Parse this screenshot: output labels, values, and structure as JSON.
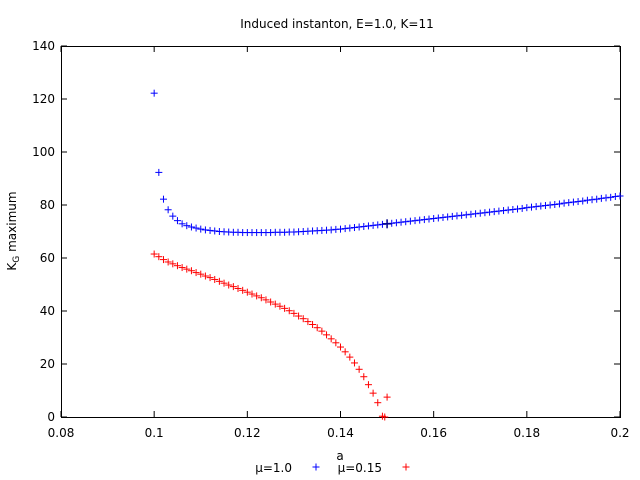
{
  "chart_data": {
    "type": "scatter",
    "title": "Induced instanton, E=1.0, K=11",
    "xlabel": "a",
    "ylabel_main": "K",
    "ylabel_sub": "G",
    "ylabel_rest": " maximum",
    "xlim": [
      0.08,
      0.2
    ],
    "ylim": [
      0,
      140
    ],
    "x_ticks": [
      "0.08",
      "0.1",
      "0.12",
      "0.14",
      "0.16",
      "0.18",
      "0.2"
    ],
    "y_ticks": [
      "0",
      "20",
      "40",
      "60",
      "80",
      "100",
      "120",
      "140"
    ],
    "grid": false,
    "legend_position": "bottom-center",
    "series": [
      {
        "name": "μ=1.0",
        "color": "#0000ff",
        "marker": "plus",
        "points": [
          [
            0.1,
            122.2
          ],
          [
            0.101,
            92.3
          ],
          [
            0.102,
            82.2
          ],
          [
            0.103,
            78.2
          ],
          [
            0.104,
            75.8
          ],
          [
            0.105,
            74.1
          ],
          [
            0.106,
            72.9
          ],
          [
            0.107,
            72.2
          ],
          [
            0.108,
            71.7
          ],
          [
            0.109,
            71.3
          ],
          [
            0.11,
            70.9
          ],
          [
            0.111,
            70.6
          ],
          [
            0.112,
            70.4
          ],
          [
            0.113,
            70.2
          ],
          [
            0.114,
            70.0
          ],
          [
            0.115,
            69.9
          ],
          [
            0.116,
            69.8
          ],
          [
            0.117,
            69.7
          ],
          [
            0.118,
            69.7
          ],
          [
            0.119,
            69.6
          ],
          [
            0.12,
            69.6
          ],
          [
            0.121,
            69.6
          ],
          [
            0.122,
            69.6
          ],
          [
            0.123,
            69.6
          ],
          [
            0.124,
            69.6
          ],
          [
            0.125,
            69.6
          ],
          [
            0.126,
            69.7
          ],
          [
            0.127,
            69.7
          ],
          [
            0.128,
            69.7
          ],
          [
            0.129,
            69.8
          ],
          [
            0.13,
            69.8
          ],
          [
            0.131,
            69.9
          ],
          [
            0.132,
            70.0
          ],
          [
            0.133,
            70.1
          ],
          [
            0.134,
            70.2
          ],
          [
            0.135,
            70.3
          ],
          [
            0.136,
            70.4
          ],
          [
            0.137,
            70.5
          ],
          [
            0.138,
            70.6
          ],
          [
            0.139,
            70.8
          ],
          [
            0.14,
            70.9
          ],
          [
            0.141,
            71.1
          ],
          [
            0.142,
            71.3
          ],
          [
            0.143,
            71.5
          ],
          [
            0.144,
            71.7
          ],
          [
            0.145,
            71.9
          ],
          [
            0.146,
            72.1
          ],
          [
            0.147,
            72.3
          ],
          [
            0.148,
            72.5
          ],
          [
            0.149,
            72.7
          ],
          [
            0.15,
            72.9
          ],
          [
            0.151,
            73.1
          ],
          [
            0.152,
            73.3
          ],
          [
            0.153,
            73.5
          ],
          [
            0.154,
            73.7
          ],
          [
            0.155,
            73.9
          ],
          [
            0.156,
            74.1
          ],
          [
            0.157,
            74.3
          ],
          [
            0.158,
            74.5
          ],
          [
            0.159,
            74.7
          ],
          [
            0.16,
            74.9
          ],
          [
            0.161,
            75.1
          ],
          [
            0.162,
            75.3
          ],
          [
            0.163,
            75.5
          ],
          [
            0.164,
            75.7
          ],
          [
            0.165,
            75.9
          ],
          [
            0.166,
            76.1
          ],
          [
            0.167,
            76.3
          ],
          [
            0.168,
            76.5
          ],
          [
            0.169,
            76.7
          ],
          [
            0.17,
            76.9
          ],
          [
            0.171,
            77.1
          ],
          [
            0.172,
            77.3
          ],
          [
            0.173,
            77.5
          ],
          [
            0.174,
            77.7
          ],
          [
            0.175,
            77.9
          ],
          [
            0.176,
            78.1
          ],
          [
            0.177,
            78.3
          ],
          [
            0.178,
            78.5
          ],
          [
            0.179,
            78.7
          ],
          [
            0.18,
            79.0
          ],
          [
            0.181,
            79.2
          ],
          [
            0.182,
            79.4
          ],
          [
            0.183,
            79.6
          ],
          [
            0.184,
            79.8
          ],
          [
            0.185,
            80.0
          ],
          [
            0.186,
            80.2
          ],
          [
            0.187,
            80.4
          ],
          [
            0.188,
            80.7
          ],
          [
            0.189,
            80.9
          ],
          [
            0.19,
            81.1
          ],
          [
            0.191,
            81.3
          ],
          [
            0.192,
            81.5
          ],
          [
            0.193,
            81.8
          ],
          [
            0.194,
            82.0
          ],
          [
            0.195,
            82.2
          ],
          [
            0.196,
            82.5
          ],
          [
            0.197,
            82.7
          ],
          [
            0.198,
            82.9
          ],
          [
            0.199,
            83.2
          ],
          [
            0.2,
            83.4
          ]
        ]
      },
      {
        "name": "μ=0.15",
        "color": "#ff0000",
        "marker": "plus",
        "points": [
          [
            0.1,
            61.5
          ],
          [
            0.101,
            60.5
          ],
          [
            0.102,
            59.4
          ],
          [
            0.103,
            58.5
          ],
          [
            0.104,
            57.8
          ],
          [
            0.105,
            57.1
          ],
          [
            0.106,
            56.4
          ],
          [
            0.107,
            55.8
          ],
          [
            0.108,
            55.2
          ],
          [
            0.109,
            54.5
          ],
          [
            0.11,
            53.9
          ],
          [
            0.111,
            53.2
          ],
          [
            0.112,
            52.6
          ],
          [
            0.113,
            51.9
          ],
          [
            0.114,
            51.2
          ],
          [
            0.115,
            50.5
          ],
          [
            0.116,
            49.8
          ],
          [
            0.117,
            49.2
          ],
          [
            0.118,
            48.5
          ],
          [
            0.119,
            47.8
          ],
          [
            0.12,
            47.1
          ],
          [
            0.121,
            46.4
          ],
          [
            0.122,
            45.7
          ],
          [
            0.123,
            45.0
          ],
          [
            0.124,
            44.2
          ],
          [
            0.125,
            43.4
          ],
          [
            0.126,
            42.6
          ],
          [
            0.127,
            41.8
          ],
          [
            0.128,
            41.0
          ],
          [
            0.129,
            40.1
          ],
          [
            0.13,
            39.1
          ],
          [
            0.131,
            38.1
          ],
          [
            0.132,
            37.1
          ],
          [
            0.133,
            36.0
          ],
          [
            0.134,
            34.9
          ],
          [
            0.135,
            33.7
          ],
          [
            0.136,
            32.4
          ],
          [
            0.137,
            31.0
          ],
          [
            0.138,
            29.5
          ],
          [
            0.139,
            28.0
          ],
          [
            0.14,
            26.4
          ],
          [
            0.141,
            24.6
          ],
          [
            0.142,
            22.6
          ],
          [
            0.143,
            20.4
          ],
          [
            0.144,
            18.0
          ],
          [
            0.145,
            15.2
          ],
          [
            0.146,
            12.2
          ],
          [
            0.147,
            9.0
          ],
          [
            0.148,
            5.4
          ],
          [
            0.149,
            0.3
          ],
          [
            0.1495,
            0.0
          ],
          [
            0.15,
            7.5
          ]
        ]
      }
    ],
    "extra_marker": {
      "series": "μ=1.0",
      "point": [
        0.15,
        72.9
      ]
    }
  }
}
